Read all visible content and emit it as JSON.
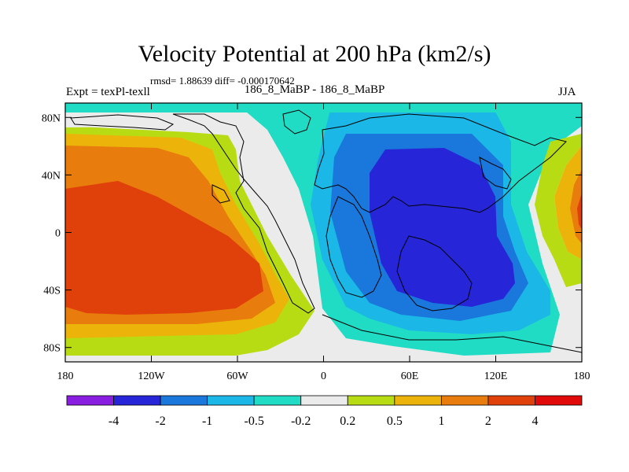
{
  "chart_data": {
    "type": "heatmap",
    "title": "Velocity Potential at 200 hPa (km2/s)",
    "stats_text": "rmsd= 1.88639  diff= -0.000170642",
    "left_label": "Expt = texPl-texll",
    "center_label": "186_8_MaBP - 186_8_MaBP",
    "right_label": "JJA",
    "x_ticks": [
      {
        "value": -180,
        "label": "180"
      },
      {
        "value": -120,
        "label": "120W"
      },
      {
        "value": -60,
        "label": "60W"
      },
      {
        "value": 0,
        "label": "0"
      },
      {
        "value": 60,
        "label": "60E"
      },
      {
        "value": 120,
        "label": "120E"
      },
      {
        "value": 180,
        "label": "180"
      }
    ],
    "y_ticks": [
      {
        "value": 80,
        "label": "80N"
      },
      {
        "value": 40,
        "label": "40N"
      },
      {
        "value": 0,
        "label": "0"
      },
      {
        "value": -40,
        "label": "40S"
      },
      {
        "value": -80,
        "label": "80S"
      }
    ],
    "xlim": [
      -180,
      180
    ],
    "ylim": [
      -90,
      90
    ],
    "colorbar": {
      "levels": [
        "-4",
        "-2",
        "-1",
        "-0.5",
        "-0.2",
        "0.2",
        "0.5",
        "1",
        "2",
        "4"
      ],
      "colors": [
        "#8a1ee0",
        "#2626d8",
        "#1a78dc",
        "#1bb7e6",
        "#20dcc4",
        "#ebebeb",
        "#b8dc14",
        "#ecb40a",
        "#e87c0c",
        "#e0400a",
        "#e00a0a"
      ]
    }
  }
}
